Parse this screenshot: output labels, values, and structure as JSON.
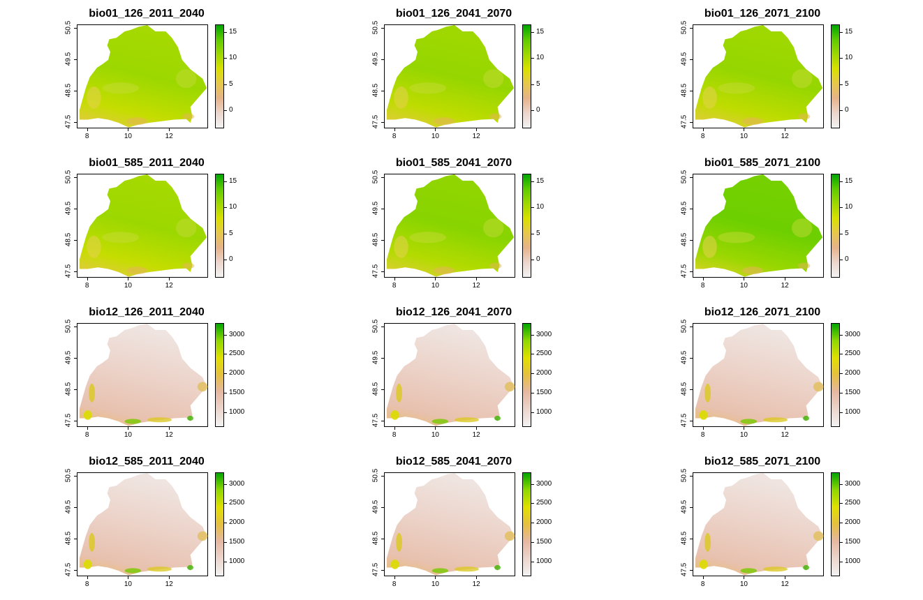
{
  "chart_data": [
    {
      "type": "heatmap",
      "title": "bio01_126_2011_2040",
      "variant": "temp",
      "shade": 0.0,
      "legend_ticks": [
        "15",
        "10",
        "5",
        "0"
      ],
      "legend_values": [
        15,
        10,
        5,
        0
      ],
      "range": [
        -3.5,
        16.5
      ]
    },
    {
      "type": "heatmap",
      "title": "bio01_126_2041_2070",
      "variant": "temp",
      "shade": 0.05,
      "legend_ticks": [
        "15",
        "10",
        "5",
        "0"
      ],
      "legend_values": [
        15,
        10,
        5,
        0
      ],
      "range": [
        -3.5,
        16.5
      ]
    },
    {
      "type": "heatmap",
      "title": "bio01_126_2071_2100",
      "variant": "temp",
      "shade": 0.05,
      "legend_ticks": [
        "15",
        "10",
        "5",
        "0"
      ],
      "legend_values": [
        15,
        10,
        5,
        0
      ],
      "range": [
        -3.5,
        16.5
      ]
    },
    {
      "type": "heatmap",
      "title": "bio01_585_2011_2040",
      "variant": "temp",
      "shade": 0.0,
      "legend_ticks": [
        "15",
        "10",
        "5",
        "0"
      ],
      "legend_values": [
        15,
        10,
        5,
        0
      ],
      "range": [
        -3.5,
        16.5
      ]
    },
    {
      "type": "heatmap",
      "title": "bio01_585_2041_2070",
      "variant": "temp",
      "shade": 0.15,
      "legend_ticks": [
        "15",
        "10",
        "5",
        "0"
      ],
      "legend_values": [
        15,
        10,
        5,
        0
      ],
      "range": [
        -3.5,
        16.5
      ]
    },
    {
      "type": "heatmap",
      "title": "bio01_585_2071_2100",
      "variant": "temp",
      "shade": 0.35,
      "legend_ticks": [
        "15",
        "10",
        "5",
        "0"
      ],
      "legend_values": [
        15,
        10,
        5,
        0
      ],
      "range": [
        -3.5,
        16.5
      ]
    },
    {
      "type": "heatmap",
      "title": "bio12_126_2011_2040",
      "variant": "prec",
      "shade": 0.0,
      "legend_ticks": [
        "3000",
        "2500",
        "2000",
        "1500",
        "1000"
      ],
      "legend_values": [
        3000,
        2500,
        2000,
        1500,
        1000
      ],
      "range": [
        620,
        3300
      ]
    },
    {
      "type": "heatmap",
      "title": "bio12_126_2041_2070",
      "variant": "prec",
      "shade": 0.0,
      "legend_ticks": [
        "3000",
        "2500",
        "2000",
        "1500",
        "1000"
      ],
      "legend_values": [
        3000,
        2500,
        2000,
        1500,
        1000
      ],
      "range": [
        620,
        3300
      ]
    },
    {
      "type": "heatmap",
      "title": "bio12_126_2071_2100",
      "variant": "prec",
      "shade": 0.0,
      "legend_ticks": [
        "3000",
        "2500",
        "2000",
        "1500",
        "1000"
      ],
      "legend_values": [
        3000,
        2500,
        2000,
        1500,
        1000
      ],
      "range": [
        620,
        3300
      ]
    },
    {
      "type": "heatmap",
      "title": "bio12_585_2011_2040",
      "variant": "prec",
      "shade": 0.0,
      "legend_ticks": [
        "3000",
        "2500",
        "2000",
        "1500",
        "1000"
      ],
      "legend_values": [
        3000,
        2500,
        2000,
        1500,
        1000
      ],
      "range": [
        620,
        3300
      ]
    },
    {
      "type": "heatmap",
      "title": "bio12_585_2041_2070",
      "variant": "prec",
      "shade": 0.0,
      "legend_ticks": [
        "3000",
        "2500",
        "2000",
        "1500",
        "1000"
      ],
      "legend_values": [
        3000,
        2500,
        2000,
        1500,
        1000
      ],
      "range": [
        620,
        3300
      ]
    },
    {
      "type": "heatmap",
      "title": "bio12_585_2071_2100",
      "variant": "prec",
      "shade": 0.0,
      "legend_ticks": [
        "3000",
        "2500",
        "2000",
        "1500",
        "1000"
      ],
      "legend_values": [
        3000,
        2500,
        2000,
        1500,
        1000
      ],
      "range": [
        620,
        3300
      ]
    }
  ],
  "axes": {
    "x_ticks": [
      "8",
      "10",
      "12"
    ],
    "x_values": [
      8,
      10,
      12
    ],
    "y_ticks": [
      "47.5",
      "48.5",
      "49.5",
      "50.5"
    ],
    "y_values": [
      47.5,
      48.5,
      49.5,
      50.5
    ],
    "xlim": [
      7.5,
      13.9
    ],
    "ylim": [
      47.3,
      50.6
    ]
  },
  "colors": {
    "temp_ramp": [
      "#f2f2f2",
      "#ecd5cc",
      "#e6b38a",
      "#e6c84a",
      "#d9e000",
      "#9fd800",
      "#5fcc00",
      "#00a600"
    ],
    "prec_ramp": [
      "#f2f2f2",
      "#ecd5cc",
      "#e6b8a2",
      "#e6c040",
      "#e0e000",
      "#90d800",
      "#00a600"
    ]
  }
}
